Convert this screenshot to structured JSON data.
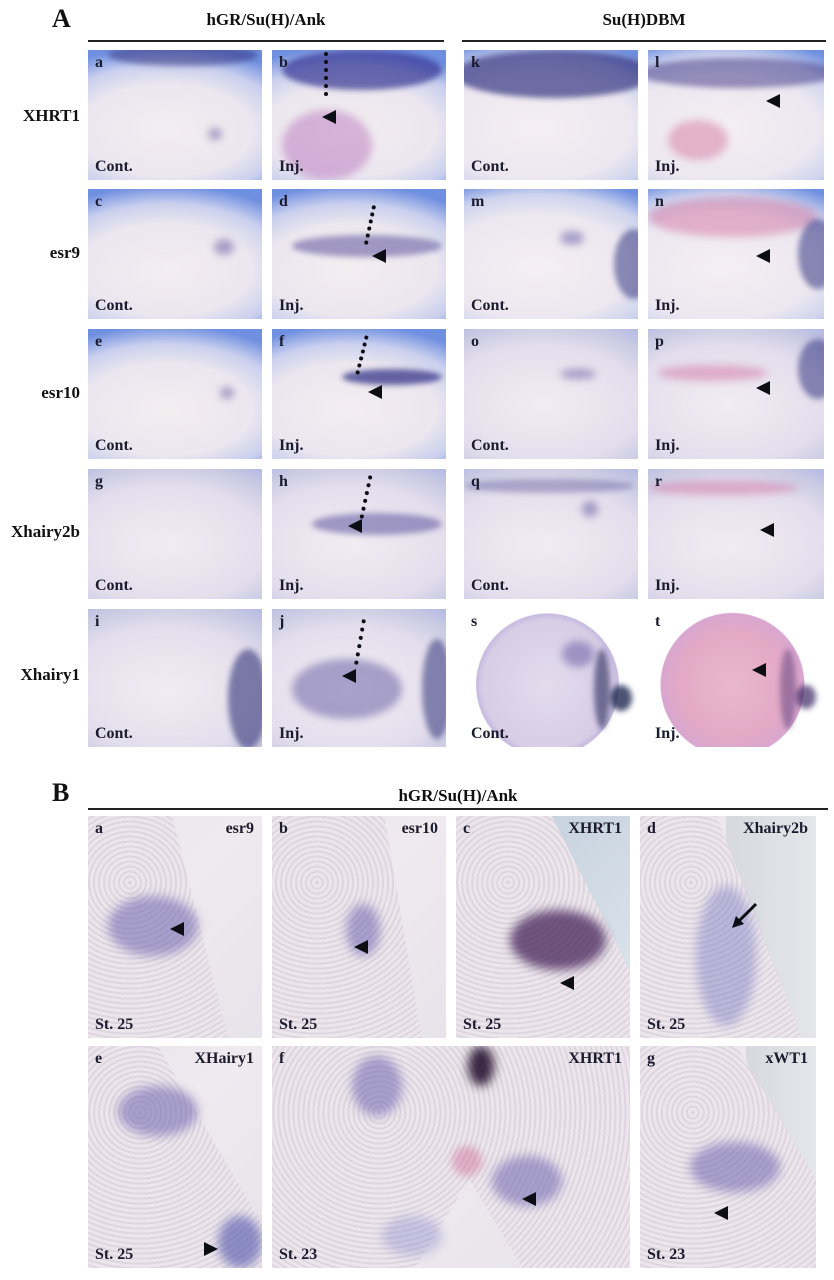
{
  "panel_a": {
    "letter": "A",
    "group_left_title": "hGR/Su(H)/Ank",
    "group_right_title": "Su(H)DBM",
    "rows": [
      {
        "gene": "XHRT1",
        "tiles": [
          {
            "letter": "a",
            "cond": "Cont."
          },
          {
            "letter": "b",
            "cond": "Inj."
          },
          {
            "letter": "k",
            "cond": "Cont."
          },
          {
            "letter": "l",
            "cond": "Inj."
          }
        ]
      },
      {
        "gene": "esr9",
        "tiles": [
          {
            "letter": "c",
            "cond": "Cont."
          },
          {
            "letter": "d",
            "cond": "Inj."
          },
          {
            "letter": "m",
            "cond": "Cont."
          },
          {
            "letter": "n",
            "cond": "Inj."
          }
        ]
      },
      {
        "gene": "esr10",
        "tiles": [
          {
            "letter": "e",
            "cond": "Cont."
          },
          {
            "letter": "f",
            "cond": "Inj."
          },
          {
            "letter": "o",
            "cond": "Cont."
          },
          {
            "letter": "p",
            "cond": "Inj."
          }
        ]
      },
      {
        "gene": "Xhairy2b",
        "tiles": [
          {
            "letter": "g",
            "cond": "Cont."
          },
          {
            "letter": "h",
            "cond": "Inj."
          },
          {
            "letter": "q",
            "cond": "Cont."
          },
          {
            "letter": "r",
            "cond": "Inj."
          }
        ]
      },
      {
        "gene": "Xhairy1",
        "tiles": [
          {
            "letter": "i",
            "cond": "Cont."
          },
          {
            "letter": "j",
            "cond": "Inj."
          },
          {
            "letter": "s",
            "cond": "Cont."
          },
          {
            "letter": "t",
            "cond": "Inj."
          }
        ]
      }
    ]
  },
  "panel_b": {
    "letter": "B",
    "title": "hGR/Su(H)/Ank",
    "row1": [
      {
        "letter": "a",
        "gene": "esr9",
        "stage": "St. 25"
      },
      {
        "letter": "b",
        "gene": "esr10",
        "stage": "St. 25"
      },
      {
        "letter": "c",
        "gene": "XHRT1",
        "stage": "St. 25"
      },
      {
        "letter": "d",
        "gene": "Xhairy2b",
        "stage": "St. 25"
      }
    ],
    "row2": [
      {
        "letter": "e",
        "gene": "XHairy1",
        "stage": "St. 25"
      },
      {
        "letter": "f",
        "gene": "XHRT1",
        "stage": "St. 23"
      },
      {
        "letter": "g",
        "gene": "xWT1",
        "stage": "St. 23"
      }
    ]
  }
}
